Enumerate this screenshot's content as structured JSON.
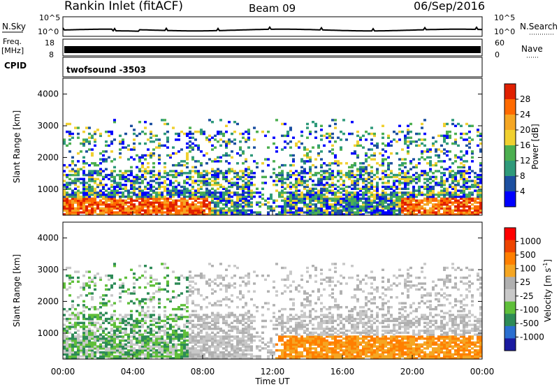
{
  "header": {
    "station": "Rankin Inlet (fitACF)",
    "beam": "Beam 09",
    "date": "06/Sep/2016"
  },
  "strip_labels": {
    "nsky": "N.Sky",
    "nsearch": "N.Search",
    "freq_line1": "Freq.",
    "freq_line2": "[MHz]",
    "cpid": "CPID",
    "nave": "Nave",
    "nsky_ticks": [
      "10^5",
      "10^0"
    ],
    "nsearch_ticks": [
      "10^5",
      "10^0"
    ],
    "freq_ticks": [
      "18",
      "8"
    ],
    "nave_ticks": [
      "60",
      "0"
    ],
    "cpid_value": "twofsound  -3503"
  },
  "colors": {
    "power": [
      "#0000ff",
      "#1c4fa0",
      "#2f9a7a",
      "#4caf50",
      "#f0d030",
      "#f5a623",
      "#ff6a00",
      "#e02000"
    ],
    "velocity": [
      "#1a1aa0",
      "#2b6fd0",
      "#2e8b57",
      "#5fbf3a",
      "#c8c8c8",
      "#b0b0b0",
      "#f5a623",
      "#ff7f00",
      "#ee4400",
      "#ff0000"
    ]
  },
  "chart_data": [
    {
      "type": "heatmap",
      "title": "Power",
      "ylabel": "Slant Range [km]",
      "ylim": [
        180,
        4500
      ],
      "yticks": [
        1000,
        2000,
        3000,
        4000
      ],
      "xlim": [
        "00:00",
        "24:00"
      ],
      "colorbar_label": "Power [dB]",
      "colorbar_ticks": [
        "4",
        "8",
        "12",
        "16",
        "20",
        "24",
        "28"
      ],
      "colorbar_range": [
        0,
        32
      ]
    },
    {
      "type": "heatmap",
      "title": "Velocity",
      "ylabel": "Slant Range [km]",
      "ylim": [
        180,
        4500
      ],
      "yticks": [
        1000,
        2000,
        3000,
        4000
      ],
      "xlim": [
        "00:00",
        "24:00"
      ],
      "xlabel": "Time UT",
      "xticks": [
        "00:00",
        "04:00",
        "08:00",
        "12:00",
        "16:00",
        "20:00",
        "00:00"
      ],
      "colorbar_label": "Velocity [m s",
      "colorbar_label_sup": "-1",
      "colorbar_label_end": "]",
      "colorbar_ticks": [
        "1000",
        "500",
        "100",
        "25",
        "-25",
        "-100",
        "-500",
        "-1000"
      ]
    }
  ]
}
